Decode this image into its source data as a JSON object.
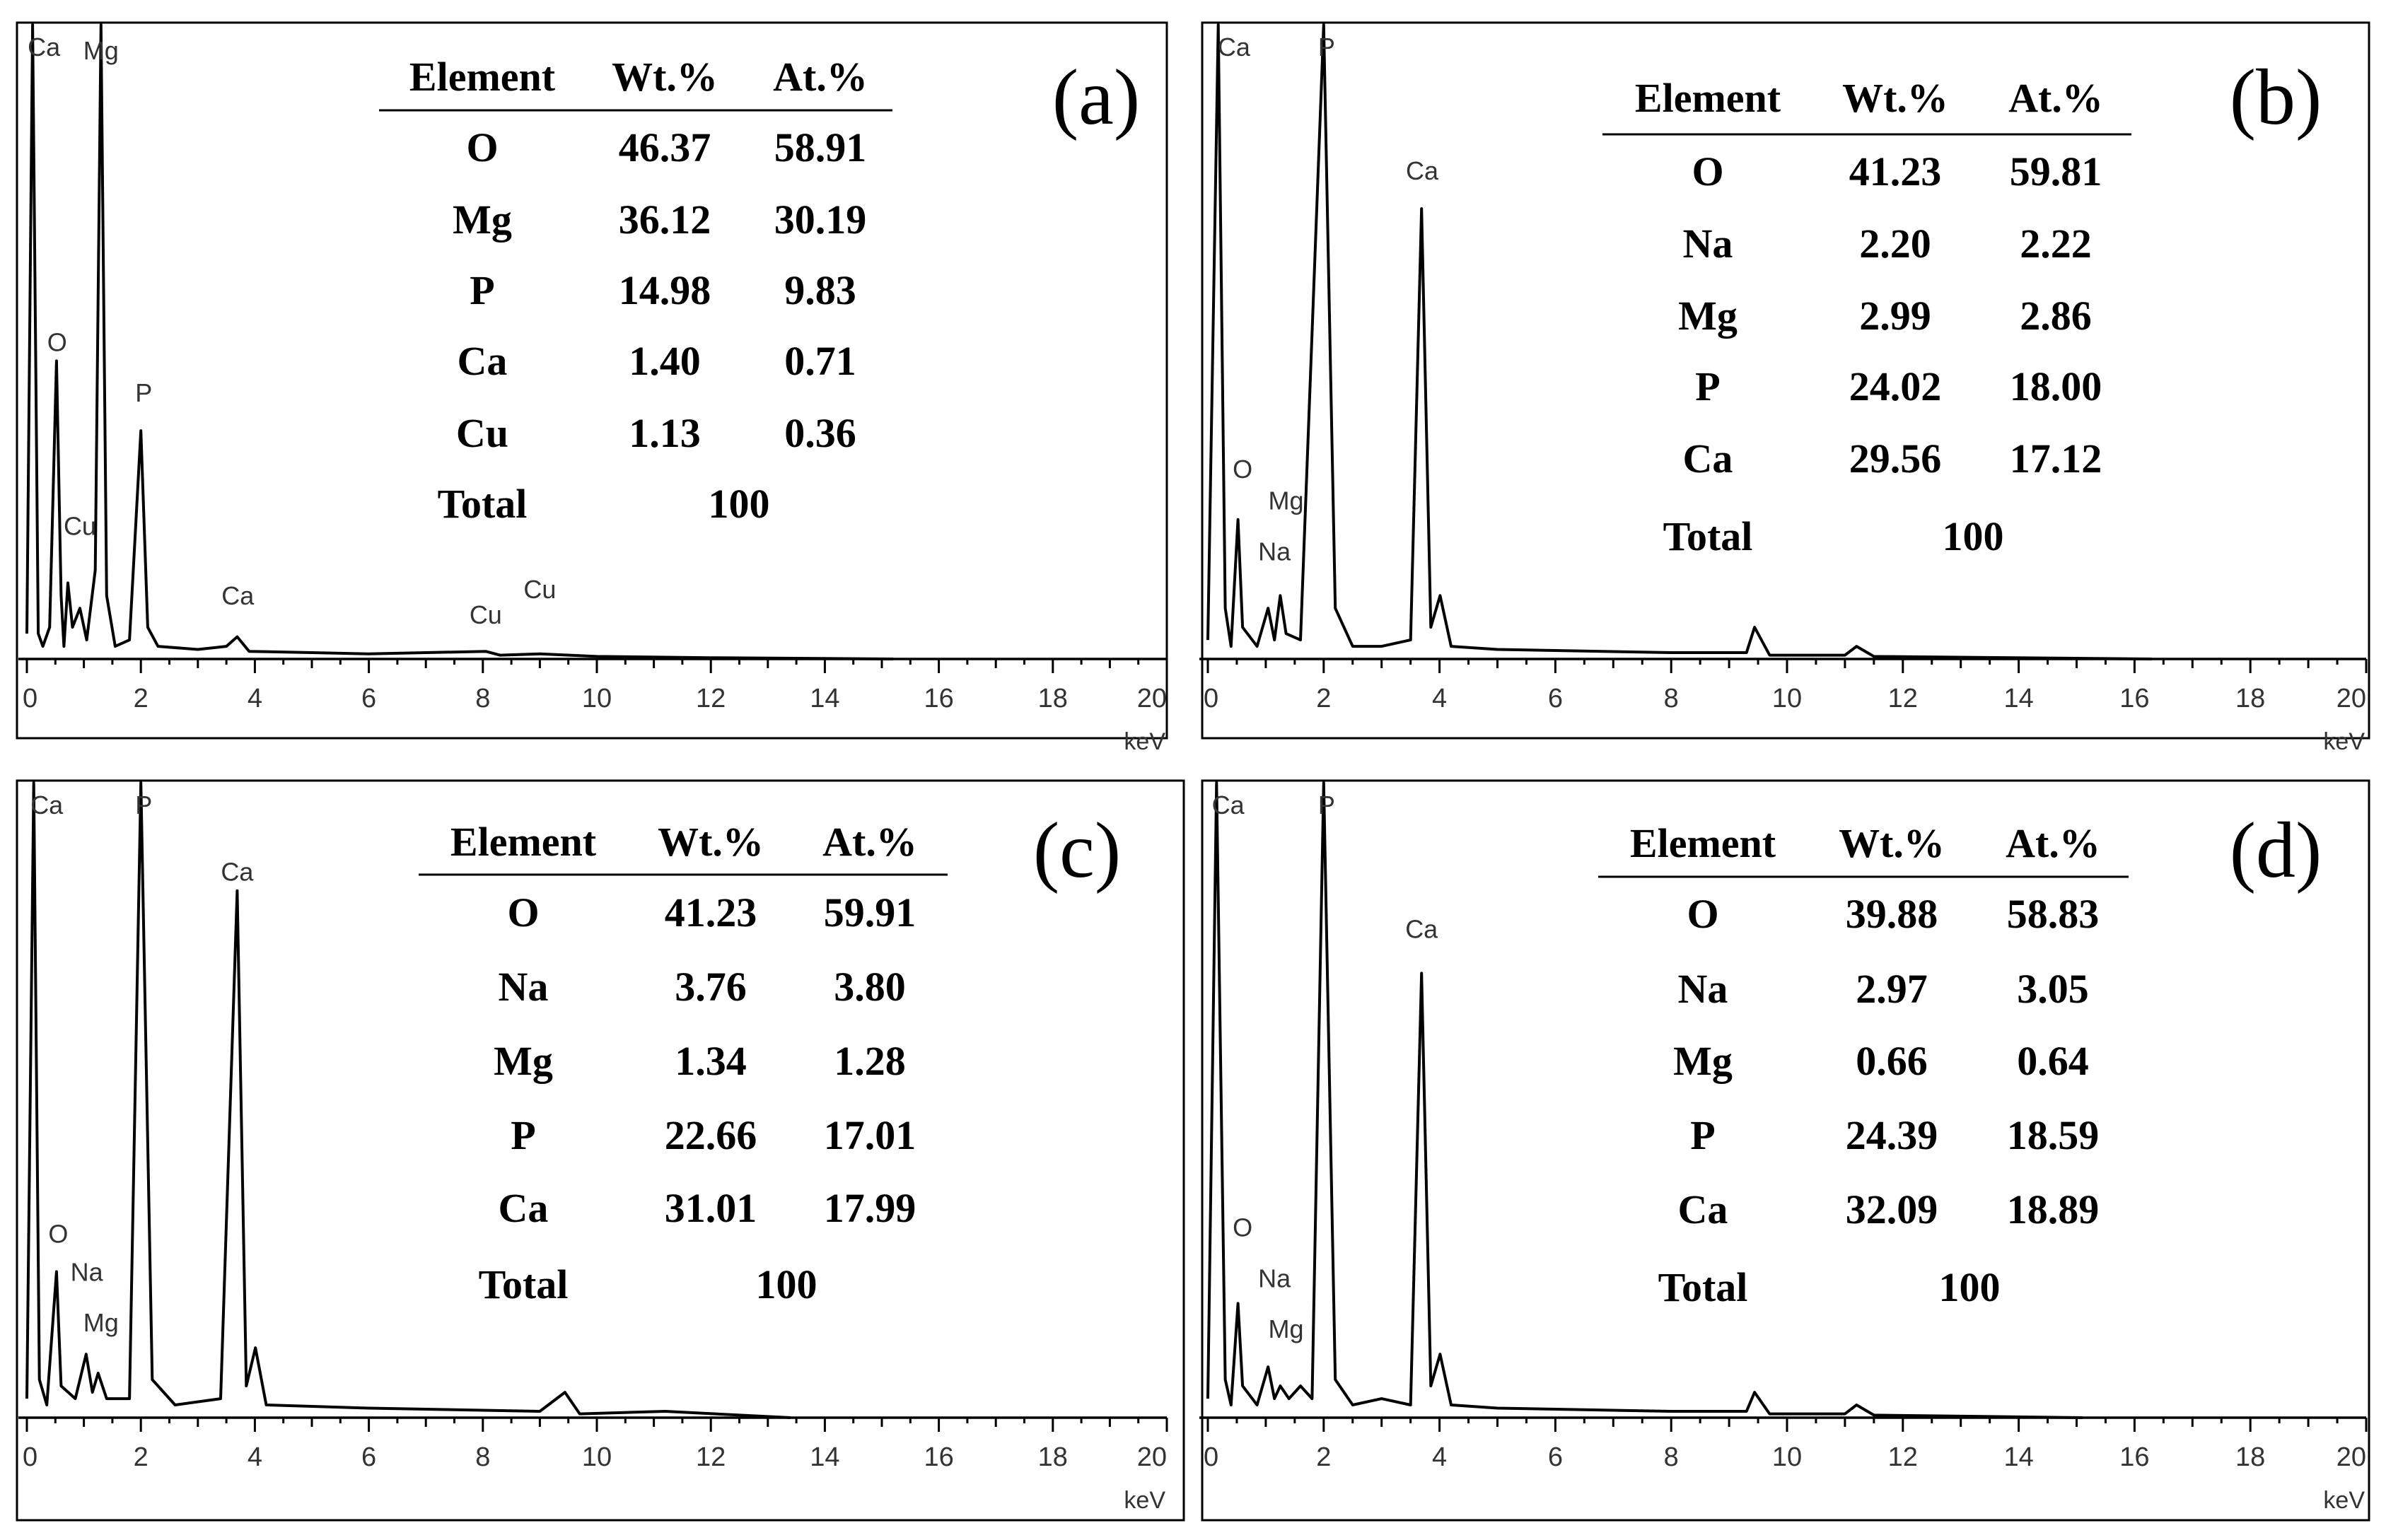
{
  "chart_data": [
    {
      "type": "line",
      "panel_label": "(a)",
      "xlabel": "keV",
      "xlim": [
        0,
        20
      ],
      "x_ticks": [
        "0",
        "2",
        "4",
        "6",
        "8",
        "10",
        "12",
        "14",
        "16",
        "18",
        "20"
      ],
      "peak_labels": [
        {
          "text": "Ca",
          "x": 0.3,
          "y": 1.0
        },
        {
          "text": "Mg",
          "x": 1.3,
          "y": 0.93
        },
        {
          "text": "O",
          "x": 0.53,
          "y": 0.47
        },
        {
          "text": "P",
          "x": 2.05,
          "y": 0.39
        },
        {
          "text": "Cu",
          "x": 0.93,
          "y": 0.18
        },
        {
          "text": "Ca",
          "x": 3.7,
          "y": 0.07
        },
        {
          "text": "Cu",
          "x": 8.05,
          "y": 0.04
        },
        {
          "text": "Cu",
          "x": 9.0,
          "y": 0.08
        }
      ],
      "spectrum": [
        [
          0.0,
          0.04
        ],
        [
          0.1,
          1.0
        ],
        [
          0.2,
          0.04
        ],
        [
          0.28,
          0.02
        ],
        [
          0.4,
          0.05
        ],
        [
          0.52,
          0.47
        ],
        [
          0.6,
          0.1
        ],
        [
          0.65,
          0.02
        ],
        [
          0.72,
          0.12
        ],
        [
          0.8,
          0.05
        ],
        [
          0.93,
          0.08
        ],
        [
          1.05,
          0.03
        ],
        [
          1.2,
          0.14
        ],
        [
          1.3,
          1.0
        ],
        [
          1.4,
          0.1
        ],
        [
          1.55,
          0.02
        ],
        [
          1.8,
          0.03
        ],
        [
          2.0,
          0.36
        ],
        [
          2.12,
          0.05
        ],
        [
          2.3,
          0.02
        ],
        [
          3.0,
          0.015
        ],
        [
          3.5,
          0.02
        ],
        [
          3.69,
          0.035
        ],
        [
          3.9,
          0.012
        ],
        [
          5.0,
          0.01
        ],
        [
          6.0,
          0.008
        ],
        [
          8.05,
          0.012
        ],
        [
          8.3,
          0.006
        ],
        [
          9.0,
          0.008
        ],
        [
          10.0,
          0.004
        ],
        [
          12.0,
          0.002
        ],
        [
          15.2,
          0.0
        ]
      ],
      "table": {
        "headers": [
          "Element",
          "Wt.%",
          "At.%"
        ],
        "rows": [
          [
            "O",
            "46.37",
            "58.91"
          ],
          [
            "Mg",
            "36.12",
            "30.19"
          ],
          [
            "P",
            "14.98",
            "9.83"
          ],
          [
            "Ca",
            "1.40",
            "0.71"
          ],
          [
            "Cu",
            "1.13",
            "0.36"
          ]
        ],
        "total_label": "Total",
        "total_value": "100"
      }
    },
    {
      "type": "line",
      "panel_label": "(b)",
      "xlabel": "keV",
      "xlim": [
        0,
        20
      ],
      "x_ticks": [
        "0",
        "2",
        "4",
        "6",
        "8",
        "10",
        "12",
        "14",
        "16",
        "18",
        "20"
      ],
      "peak_labels": [
        {
          "text": "Ca",
          "x": 0.45,
          "y": 1.0
        },
        {
          "text": "P",
          "x": 2.05,
          "y": 1.0
        },
        {
          "text": "Ca",
          "x": 3.7,
          "y": 0.74
        },
        {
          "text": "O",
          "x": 0.6,
          "y": 0.27
        },
        {
          "text": "Mg",
          "x": 1.35,
          "y": 0.22
        },
        {
          "text": "Na",
          "x": 1.15,
          "y": 0.14
        }
      ],
      "spectrum": [
        [
          0.0,
          0.03
        ],
        [
          0.18,
          1.0
        ],
        [
          0.3,
          0.08
        ],
        [
          0.4,
          0.02
        ],
        [
          0.52,
          0.22
        ],
        [
          0.6,
          0.05
        ],
        [
          0.85,
          0.02
        ],
        [
          1.04,
          0.08
        ],
        [
          1.15,
          0.03
        ],
        [
          1.25,
          0.1
        ],
        [
          1.35,
          0.04
        ],
        [
          1.6,
          0.03
        ],
        [
          2.0,
          1.0
        ],
        [
          2.2,
          0.08
        ],
        [
          2.5,
          0.02
        ],
        [
          3.0,
          0.02
        ],
        [
          3.5,
          0.03
        ],
        [
          3.69,
          0.71
        ],
        [
          3.85,
          0.05
        ],
        [
          4.01,
          0.1
        ],
        [
          4.2,
          0.02
        ],
        [
          5.0,
          0.015
        ],
        [
          8.0,
          0.01
        ],
        [
          9.3,
          0.01
        ],
        [
          9.44,
          0.05
        ],
        [
          9.7,
          0.006
        ],
        [
          11.0,
          0.006
        ],
        [
          11.2,
          0.02
        ],
        [
          11.5,
          0.004
        ],
        [
          16.3,
          0.0
        ]
      ],
      "table": {
        "headers": [
          "Element",
          "Wt.%",
          "At.%"
        ],
        "rows": [
          [
            "O",
            "41.23",
            "59.81"
          ],
          [
            "Na",
            "2.20",
            "2.22"
          ],
          [
            "Mg",
            "2.99",
            "2.86"
          ],
          [
            "P",
            "24.02",
            "18.00"
          ],
          [
            "Ca",
            "29.56",
            "17.12"
          ]
        ],
        "total_label": "Total",
        "total_value": "100"
      }
    },
    {
      "type": "line",
      "panel_label": "(c)",
      "xlabel": "keV",
      "xlim": [
        0,
        20
      ],
      "x_ticks": [
        "0",
        "2",
        "4",
        "6",
        "8",
        "10",
        "12",
        "14",
        "16",
        "18",
        "20"
      ],
      "peak_labels": [
        {
          "text": "Ca",
          "x": 0.35,
          "y": 1.0
        },
        {
          "text": "P",
          "x": 2.05,
          "y": 1.0
        },
        {
          "text": "Ca",
          "x": 3.69,
          "y": 0.83
        },
        {
          "text": "O",
          "x": 0.55,
          "y": 0.26
        },
        {
          "text": "Na",
          "x": 1.05,
          "y": 0.2
        },
        {
          "text": "Mg",
          "x": 1.3,
          "y": 0.12
        }
      ],
      "spectrum": [
        [
          0.0,
          0.03
        ],
        [
          0.12,
          1.0
        ],
        [
          0.22,
          0.06
        ],
        [
          0.35,
          0.02
        ],
        [
          0.52,
          0.23
        ],
        [
          0.6,
          0.05
        ],
        [
          0.85,
          0.03
        ],
        [
          1.04,
          0.1
        ],
        [
          1.15,
          0.04
        ],
        [
          1.25,
          0.07
        ],
        [
          1.4,
          0.03
        ],
        [
          1.8,
          0.03
        ],
        [
          2.0,
          1.0
        ],
        [
          2.2,
          0.06
        ],
        [
          2.6,
          0.02
        ],
        [
          3.4,
          0.03
        ],
        [
          3.69,
          0.83
        ],
        [
          3.85,
          0.05
        ],
        [
          4.01,
          0.11
        ],
        [
          4.2,
          0.02
        ],
        [
          6.0,
          0.015
        ],
        [
          9.0,
          0.01
        ],
        [
          9.44,
          0.04
        ],
        [
          9.7,
          0.006
        ],
        [
          11.2,
          0.01
        ],
        [
          13.4,
          0.0
        ]
      ],
      "table": {
        "headers": [
          "Element",
          "Wt.%",
          "At.%"
        ],
        "rows": [
          [
            "O",
            "41.23",
            "59.91"
          ],
          [
            "Na",
            "3.76",
            "3.80"
          ],
          [
            "Mg",
            "1.34",
            "1.28"
          ],
          [
            "P",
            "22.66",
            "17.01"
          ],
          [
            "Ca",
            "31.01",
            "17.99"
          ]
        ],
        "total_label": "Total",
        "total_value": "100"
      }
    },
    {
      "type": "line",
      "panel_label": "(d)",
      "xlabel": "keV",
      "xlim": [
        0,
        20
      ],
      "x_ticks": [
        "0",
        "2",
        "4",
        "6",
        "8",
        "10",
        "12",
        "14",
        "16",
        "18",
        "20"
      ],
      "peak_labels": [
        {
          "text": "Ca",
          "x": 0.35,
          "y": 1.0
        },
        {
          "text": "P",
          "x": 2.05,
          "y": 1.0
        },
        {
          "text": "Ca",
          "x": 3.69,
          "y": 0.74
        },
        {
          "text": "O",
          "x": 0.6,
          "y": 0.27
        },
        {
          "text": "Na",
          "x": 1.15,
          "y": 0.19
        },
        {
          "text": "Mg",
          "x": 1.35,
          "y": 0.11
        }
      ],
      "spectrum": [
        [
          0.0,
          0.03
        ],
        [
          0.15,
          1.0
        ],
        [
          0.3,
          0.06
        ],
        [
          0.4,
          0.02
        ],
        [
          0.52,
          0.18
        ],
        [
          0.6,
          0.05
        ],
        [
          0.85,
          0.02
        ],
        [
          1.04,
          0.08
        ],
        [
          1.15,
          0.03
        ],
        [
          1.25,
          0.05
        ],
        [
          1.4,
          0.03
        ],
        [
          1.6,
          0.05
        ],
        [
          1.8,
          0.03
        ],
        [
          2.0,
          1.0
        ],
        [
          2.2,
          0.06
        ],
        [
          2.5,
          0.02
        ],
        [
          3.0,
          0.03
        ],
        [
          3.5,
          0.02
        ],
        [
          3.69,
          0.7
        ],
        [
          3.85,
          0.05
        ],
        [
          4.01,
          0.1
        ],
        [
          4.2,
          0.02
        ],
        [
          5.0,
          0.015
        ],
        [
          8.0,
          0.01
        ],
        [
          9.3,
          0.01
        ],
        [
          9.44,
          0.04
        ],
        [
          9.7,
          0.006
        ],
        [
          11.0,
          0.006
        ],
        [
          11.2,
          0.02
        ],
        [
          11.5,
          0.004
        ],
        [
          15.1,
          0.0
        ]
      ],
      "table": {
        "headers": [
          "Element",
          "Wt.%",
          "At.%"
        ],
        "rows": [
          [
            "O",
            "39.88",
            "58.83"
          ],
          [
            "Na",
            "2.97",
            "3.05"
          ],
          [
            "Mg",
            "0.66",
            "0.64"
          ],
          [
            "P",
            "24.39",
            "18.59"
          ],
          [
            "Ca",
            "32.09",
            "18.89"
          ]
        ],
        "total_label": "Total",
        "total_value": "100"
      }
    }
  ]
}
